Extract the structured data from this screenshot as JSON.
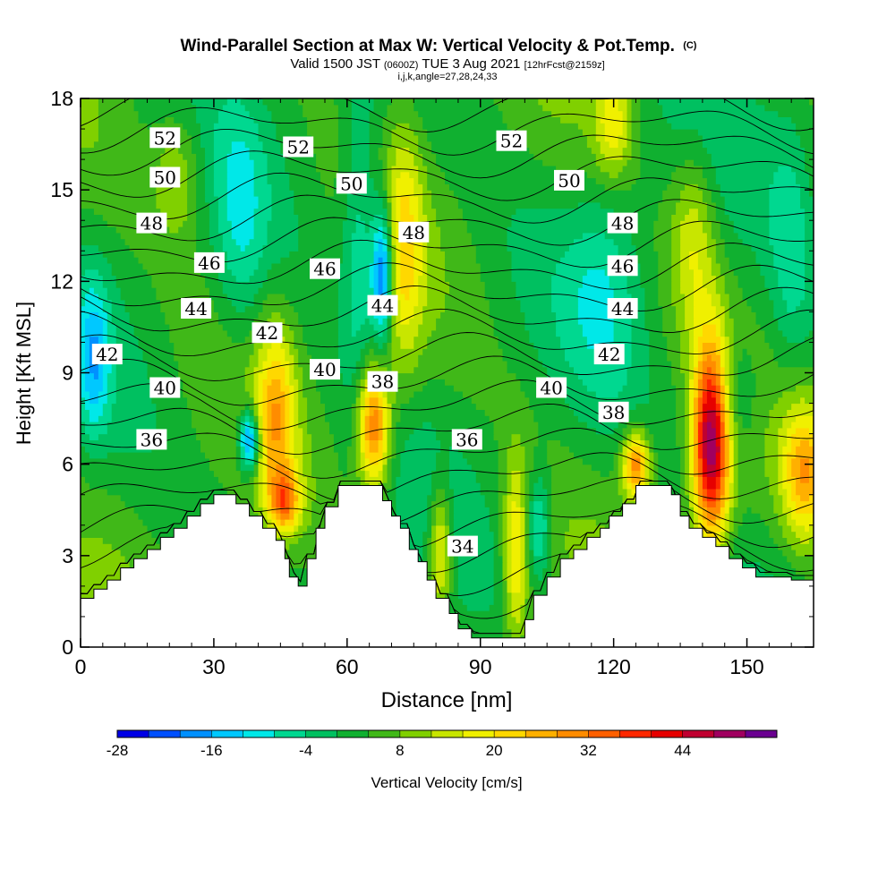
{
  "chart_data": {
    "type": "heatmap",
    "title": "Wind-Parallel Section at Max W: Vertical Velocity & Pot.Temp.",
    "title_mark": "(C)",
    "subtitle_parts": [
      "Valid 1500 JST ",
      "(0600Z)",
      " TUE 3 Aug 2021 ",
      "[12hrFcst@2159z]"
    ],
    "subtitle2": "i,j,k,angle=27,28,24,33",
    "xlabel": "Distance [nm]",
    "ylabel": "Height [Kft MSL]",
    "xlim": [
      0,
      165
    ],
    "ylim": [
      0,
      18
    ],
    "xticks": [
      "0",
      "30",
      "60",
      "90",
      "120",
      "150"
    ],
    "yticks": [
      "0",
      "3",
      "6",
      "9",
      "12",
      "15",
      "18"
    ],
    "colorbar": {
      "label": "Vertical Velocity [cm/s]",
      "range": [
        -28,
        50
      ],
      "step": 4,
      "ticks": [
        "-28",
        "-16",
        "-4",
        "8",
        "20",
        "32",
        "44"
      ],
      "colors": [
        "#0000e6",
        "#0050ff",
        "#0090ff",
        "#00c8ff",
        "#00e8e8",
        "#00d890",
        "#00c060",
        "#10b030",
        "#40b818",
        "#80d000",
        "#c8e600",
        "#f0f000",
        "#ffd800",
        "#ffb000",
        "#ff8c00",
        "#ff6000",
        "#ff2800",
        "#e60000",
        "#c00030",
        "#a00060",
        "#6a0090"
      ]
    },
    "terrain": [
      [
        0,
        1.6
      ],
      [
        3,
        1.6
      ],
      [
        3,
        1.9
      ],
      [
        6,
        1.9
      ],
      [
        6,
        2.2
      ],
      [
        9,
        2.2
      ],
      [
        9,
        2.6
      ],
      [
        12,
        2.6
      ],
      [
        12,
        2.9
      ],
      [
        15,
        2.9
      ],
      [
        15,
        3.2
      ],
      [
        18,
        3.2
      ],
      [
        18,
        3.6
      ],
      [
        21,
        3.6
      ],
      [
        21,
        3.9
      ],
      [
        24,
        3.9
      ],
      [
        24,
        4.3
      ],
      [
        27,
        4.3
      ],
      [
        27,
        4.7
      ],
      [
        30,
        4.7
      ],
      [
        30,
        5.0
      ],
      [
        35,
        5.0
      ],
      [
        35,
        4.7
      ],
      [
        38,
        4.7
      ],
      [
        38,
        4.3
      ],
      [
        41,
        4.3
      ],
      [
        41,
        3.9
      ],
      [
        44,
        3.9
      ],
      [
        44,
        3.5
      ],
      [
        46,
        3.5
      ],
      [
        46,
        2.9
      ],
      [
        47,
        2.9
      ],
      [
        47,
        2.3
      ],
      [
        49,
        2.3
      ],
      [
        49,
        2.0
      ],
      [
        51,
        2.0
      ],
      [
        51,
        2.9
      ],
      [
        53,
        2.9
      ],
      [
        53,
        3.9
      ],
      [
        55,
        3.9
      ],
      [
        55,
        4.6
      ],
      [
        58,
        4.6
      ],
      [
        58,
        5.3
      ],
      [
        68,
        5.3
      ],
      [
        68,
        4.8
      ],
      [
        70,
        4.8
      ],
      [
        70,
        4.3
      ],
      [
        72,
        4.3
      ],
      [
        72,
        3.9
      ],
      [
        74,
        3.9
      ],
      [
        74,
        3.2
      ],
      [
        76,
        3.2
      ],
      [
        76,
        2.8
      ],
      [
        78,
        2.8
      ],
      [
        78,
        2.2
      ],
      [
        80,
        2.2
      ],
      [
        80,
        1.6
      ],
      [
        83,
        1.6
      ],
      [
        83,
        1.1
      ],
      [
        85,
        1.1
      ],
      [
        85,
        0.6
      ],
      [
        88,
        0.6
      ],
      [
        88,
        0.3
      ],
      [
        100,
        0.3
      ],
      [
        100,
        0.9
      ],
      [
        102,
        0.9
      ],
      [
        102,
        1.7
      ],
      [
        105,
        1.7
      ],
      [
        105,
        2.3
      ],
      [
        108,
        2.3
      ],
      [
        108,
        2.9
      ],
      [
        111,
        2.9
      ],
      [
        111,
        3.2
      ],
      [
        114,
        3.2
      ],
      [
        114,
        3.6
      ],
      [
        117,
        3.6
      ],
      [
        117,
        3.9
      ],
      [
        119,
        3.9
      ],
      [
        119,
        4.3
      ],
      [
        122,
        4.3
      ],
      [
        122,
        4.7
      ],
      [
        125,
        4.7
      ],
      [
        125,
        5.3
      ],
      [
        133,
        5.3
      ],
      [
        133,
        5.0
      ],
      [
        135,
        5.0
      ],
      [
        135,
        4.3
      ],
      [
        137,
        4.3
      ],
      [
        137,
        3.9
      ],
      [
        140,
        3.9
      ],
      [
        140,
        3.6
      ],
      [
        143,
        3.6
      ],
      [
        143,
        3.3
      ],
      [
        146,
        3.3
      ],
      [
        146,
        2.9
      ],
      [
        149,
        2.9
      ],
      [
        149,
        2.6
      ],
      [
        152,
        2.6
      ],
      [
        152,
        2.3
      ],
      [
        160,
        2.3
      ],
      [
        160,
        2.2
      ],
      [
        165,
        2.2
      ]
    ],
    "theta_contours": [
      {
        "label": "34",
        "y": 4.6,
        "label_x": 86,
        "label_y": 3.3
      },
      {
        "label": "36",
        "y": 6.4,
        "label_x": 87,
        "label_y": 6.8
      },
      {
        "label": "38",
        "y": 7.9,
        "label_x": 120,
        "label_y": 7.7
      },
      {
        "label": "40",
        "y": 8.6,
        "label_x": 106,
        "label_y": 8.5
      },
      {
        "label": "42",
        "y": 9.6,
        "label_x": 119,
        "label_y": 9.6
      },
      {
        "label": "44",
        "y": 11.0,
        "label_x": 122,
        "label_y": 11.1
      },
      {
        "label": "46",
        "y": 12.4,
        "label_x": 122,
        "label_y": 12.5
      },
      {
        "label": "48",
        "y": 13.8,
        "label_x": 122,
        "label_y": 13.9
      },
      {
        "label": "50",
        "y": 15.3,
        "label_x": 110,
        "label_y": 15.3
      },
      {
        "label": "52",
        "y": 16.5,
        "label_x": 97,
        "label_y": 16.6
      }
    ],
    "theta_labels_extra": [
      {
        "label": "36",
        "x": 16,
        "y": 6.8
      },
      {
        "label": "40",
        "x": 19,
        "y": 8.5
      },
      {
        "label": "42",
        "x": 6,
        "y": 9.6
      },
      {
        "label": "44",
        "x": 26,
        "y": 11.1
      },
      {
        "label": "46",
        "x": 29,
        "y": 12.6
      },
      {
        "label": "48",
        "x": 16,
        "y": 13.9
      },
      {
        "label": "50",
        "x": 19,
        "y": 15.4
      },
      {
        "label": "52",
        "x": 19,
        "y": 16.7
      },
      {
        "label": "42",
        "x": 42,
        "y": 10.3
      },
      {
        "label": "40",
        "x": 55,
        "y": 9.1
      },
      {
        "label": "38",
        "x": 68,
        "y": 8.7
      },
      {
        "label": "46",
        "x": 55,
        "y": 12.4
      },
      {
        "label": "44",
        "x": 68,
        "y": 11.2
      },
      {
        "label": "48",
        "x": 75,
        "y": 13.6
      },
      {
        "label": "50",
        "x": 61,
        "y": 15.2
      },
      {
        "label": "52",
        "x": 49,
        "y": 16.4
      }
    ],
    "w_features": [
      {
        "name": "updraft-1",
        "x": 142,
        "y": 6.8,
        "peak": 50,
        "sx": 3.0,
        "sy": 2.3
      },
      {
        "name": "updraft-2",
        "x": 66,
        "y": 7.3,
        "peak": 32,
        "sx": 2.6,
        "sy": 1.5
      },
      {
        "name": "updraft-3",
        "x": 44,
        "y": 7.6,
        "peak": 20,
        "sx": 3.2,
        "sy": 2.2
      },
      {
        "name": "updraft-4",
        "x": 46,
        "y": 4.8,
        "peak": 22,
        "sx": 2.5,
        "sy": 0.7
      },
      {
        "name": "updraft-5",
        "x": 125,
        "y": 6.0,
        "peak": 28,
        "sx": 2.2,
        "sy": 0.8
      },
      {
        "name": "updraft-6",
        "x": 163,
        "y": 5.8,
        "peak": 22,
        "sx": 3.5,
        "sy": 1.6
      },
      {
        "name": "updraft-7",
        "x": 98,
        "y": 3.0,
        "peak": 18,
        "sx": 2.0,
        "sy": 2.2
      },
      {
        "name": "updraft-8",
        "x": 81,
        "y": 3.2,
        "peak": 18,
        "sx": 1.8,
        "sy": 1.5
      },
      {
        "name": "updraft-9",
        "x": 73,
        "y": 13.0,
        "peak": 14,
        "sx": 3.0,
        "sy": 3.0
      },
      {
        "name": "updraft-10",
        "x": 120,
        "y": 17.2,
        "peak": 14,
        "sx": 3.0,
        "sy": 1.2
      },
      {
        "name": "updraft-11",
        "x": 138,
        "y": 13.5,
        "peak": 12,
        "sx": 3.5,
        "sy": 2.0
      },
      {
        "name": "updraft-12",
        "x": 22,
        "y": 15.5,
        "peak": 10,
        "sx": 4.0,
        "sy": 1.5
      },
      {
        "name": "downdraft-1",
        "x": 38,
        "y": 6.8,
        "peak": -28,
        "sx": 1.6,
        "sy": 0.7
      },
      {
        "name": "downdraft-2",
        "x": 68,
        "y": 12.3,
        "peak": -26,
        "sx": 1.6,
        "sy": 1.6
      },
      {
        "name": "downdraft-3",
        "x": 63,
        "y": 13.5,
        "peak": -12,
        "sx": 3.0,
        "sy": 3.5
      },
      {
        "name": "downdraft-4",
        "x": 3,
        "y": 9.5,
        "peak": -14,
        "sx": 2.5,
        "sy": 1.8
      },
      {
        "name": "downdraft-5",
        "x": 103,
        "y": 4.0,
        "peak": -14,
        "sx": 2.0,
        "sy": 1.2
      },
      {
        "name": "downdraft-6",
        "x": 146,
        "y": 8.2,
        "peak": -12,
        "sx": 4.5,
        "sy": 1.5
      },
      {
        "name": "downdraft-7",
        "x": 118,
        "y": 12.0,
        "peak": -8,
        "sx": 6.0,
        "sy": 2.5
      },
      {
        "name": "downdraft-8",
        "x": 36,
        "y": 13.8,
        "peak": -8,
        "sx": 4.0,
        "sy": 3.0
      },
      {
        "name": "downdraft-9",
        "x": 160,
        "y": 13.0,
        "peak": -8,
        "sx": 3.5,
        "sy": 3.0
      }
    ]
  }
}
